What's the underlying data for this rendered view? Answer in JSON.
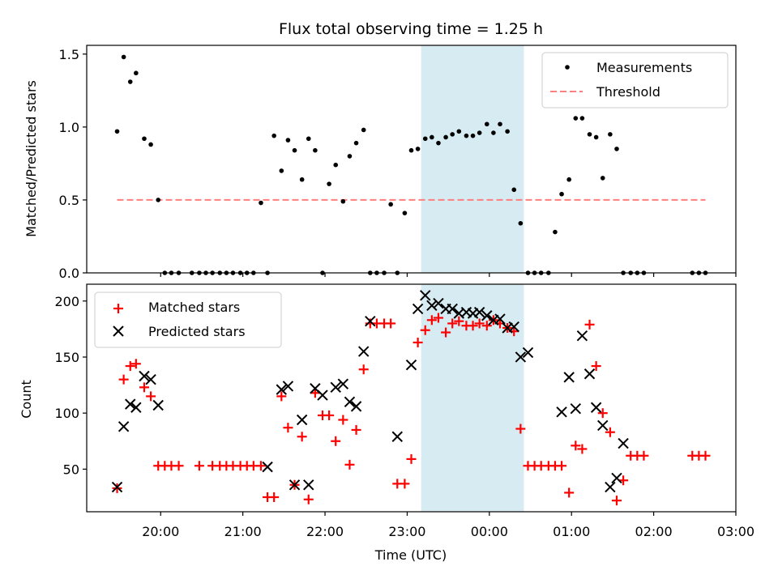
{
  "chart_data": [
    {
      "type": "scatter",
      "title": "Flux total observing time = 1.25 h",
      "ylabel": "Matched/Predicted stars",
      "ylim": [
        0,
        1.56
      ],
      "yticks": [
        "0.0",
        "0.5",
        "1.0",
        "1.5"
      ],
      "legend_position": "top-right",
      "shaded_region": {
        "start_h": 23.17,
        "end_h": 24.42,
        "color": "#add8e6"
      },
      "threshold": {
        "name": "Threshold",
        "value": 0.5,
        "x_start_h": 19.47,
        "x_end_h": 26.63,
        "color": "#ff7f7f"
      },
      "series": [
        {
          "name": "Measurements",
          "color": "#000000",
          "x_h": [
            19.47,
            19.55,
            19.63,
            19.7,
            19.8,
            19.88,
            19.97,
            20.05,
            20.13,
            20.22,
            20.38,
            20.47,
            20.55,
            20.63,
            20.72,
            20.8,
            20.88,
            20.97,
            21.05,
            21.13,
            21.22,
            21.3,
            21.38,
            21.47,
            21.55,
            21.63,
            21.72,
            21.8,
            21.88,
            21.97,
            22.05,
            22.13,
            22.22,
            22.3,
            22.38,
            22.47,
            22.55,
            22.63,
            22.72,
            22.8,
            22.88,
            22.97,
            23.05,
            23.13,
            23.22,
            23.3,
            23.38,
            23.47,
            23.55,
            23.63,
            23.72,
            23.8,
            23.88,
            23.97,
            24.05,
            24.13,
            24.22,
            24.3,
            24.38,
            24.47,
            24.55,
            24.63,
            24.72,
            24.8,
            24.88,
            24.97,
            25.05,
            25.13,
            25.22,
            25.3,
            25.38,
            25.47,
            25.55,
            25.63,
            25.72,
            25.8,
            25.88,
            26.47,
            26.55,
            26.63
          ],
          "y": [
            0.97,
            1.48,
            1.31,
            1.37,
            0.92,
            0.88,
            0.5,
            0,
            0,
            0,
            0,
            0,
            0,
            0,
            0,
            0,
            0,
            0,
            0,
            0,
            0.48,
            0,
            0.94,
            0.7,
            0.91,
            0.84,
            0.64,
            0.92,
            0.84,
            0,
            0.61,
            0.74,
            0.49,
            0.8,
            0.89,
            0.98,
            0,
            0,
            0,
            0.47,
            0,
            0.41,
            0.84,
            0.85,
            0.92,
            0.93,
            0.89,
            0.93,
            0.95,
            0.97,
            0.94,
            0.94,
            0.96,
            1.02,
            0.96,
            1.02,
            0.97,
            0.57,
            0.34,
            0,
            0,
            0,
            0,
            0.28,
            0.54,
            0.64,
            1.06,
            1.06,
            0.95,
            0.93,
            0.65,
            0.95,
            0.85,
            0,
            0,
            0,
            0,
            0,
            0,
            0
          ]
        }
      ]
    },
    {
      "type": "scatter",
      "xlabel": "Time (UTC)",
      "ylabel": "Count",
      "ylim": [
        12,
        215
      ],
      "yticks": [
        "50",
        "100",
        "150",
        "200"
      ],
      "xlim_h": [
        19.1,
        27.0
      ],
      "xticks": [
        "20:00",
        "21:00",
        "22:00",
        "23:00",
        "00:00",
        "01:00",
        "02:00",
        "03:00"
      ],
      "legend_position": "top-left",
      "shaded_region": {
        "start_h": 23.17,
        "end_h": 24.42,
        "color": "#add8e6"
      },
      "series": [
        {
          "name": "Matched stars",
          "marker": "+",
          "color": "#ff0000",
          "x_h": [
            19.47,
            19.55,
            19.63,
            19.7,
            19.8,
            19.88,
            19.97,
            20.05,
            20.13,
            20.22,
            20.47,
            20.63,
            20.72,
            20.8,
            20.88,
            20.97,
            21.05,
            21.13,
            21.22,
            21.3,
            21.38,
            21.47,
            21.55,
            21.63,
            21.72,
            21.8,
            21.88,
            21.97,
            22.05,
            22.13,
            22.22,
            22.3,
            22.38,
            22.47,
            22.55,
            22.63,
            22.72,
            22.8,
            22.88,
            22.97,
            23.05,
            23.13,
            23.22,
            23.3,
            23.38,
            23.47,
            23.55,
            23.63,
            23.72,
            23.8,
            23.88,
            23.97,
            24.05,
            24.13,
            24.22,
            24.3,
            24.38,
            24.47,
            24.55,
            24.63,
            24.72,
            24.8,
            24.88,
            24.97,
            25.05,
            25.13,
            25.22,
            25.3,
            25.38,
            25.47,
            25.55,
            25.63,
            25.72,
            25.8,
            25.88,
            26.47,
            26.55,
            26.63
          ],
          "y": [
            33,
            130,
            142,
            144,
            123,
            115,
            53,
            53,
            53,
            53,
            53,
            53,
            53,
            53,
            53,
            53,
            53,
            53,
            53,
            25,
            25,
            115,
            87,
            36,
            79,
            23,
            118,
            98,
            98,
            75,
            94,
            54,
            85,
            139,
            180,
            180,
            180,
            180,
            37,
            37,
            59,
            163,
            174,
            183,
            185,
            172,
            180,
            182,
            178,
            178,
            180,
            178,
            183,
            180,
            176,
            173,
            86,
            53,
            53,
            53,
            53,
            53,
            53,
            29,
            71,
            68,
            179,
            142,
            100,
            83,
            22,
            40,
            62,
            62,
            62,
            62,
            62,
            62
          ]
        },
        {
          "name": "Predicted stars",
          "marker": "x",
          "color": "#000000",
          "x_h": [
            19.47,
            19.55,
            19.63,
            19.7,
            19.8,
            19.88,
            19.97,
            21.3,
            21.47,
            21.55,
            21.63,
            21.72,
            21.8,
            21.88,
            21.97,
            22.13,
            22.22,
            22.3,
            22.38,
            22.47,
            22.55,
            22.88,
            23.05,
            23.13,
            23.22,
            23.3,
            23.38,
            23.47,
            23.55,
            23.63,
            23.72,
            23.8,
            23.88,
            23.97,
            24.05,
            24.13,
            24.22,
            24.3,
            24.38,
            24.47,
            24.88,
            24.97,
            25.05,
            25.13,
            25.22,
            25.3,
            25.38,
            25.47,
            25.55,
            25.63
          ],
          "y": [
            34,
            88,
            108,
            105,
            133,
            130,
            107,
            52,
            121,
            124,
            36,
            94,
            36,
            122,
            116,
            123,
            126,
            110,
            106,
            155,
            182,
            79,
            143,
            193,
            205,
            196,
            198,
            193,
            193,
            189,
            190,
            189,
            190,
            187,
            183,
            184,
            176,
            177,
            150,
            154,
            101,
            132,
            104,
            169,
            135,
            105,
            89,
            34,
            42,
            73
          ]
        }
      ]
    }
  ]
}
